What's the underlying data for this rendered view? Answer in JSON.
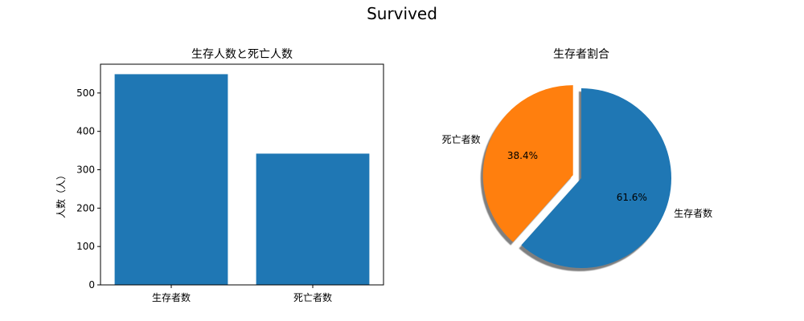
{
  "figure": {
    "title": "Survived"
  },
  "chart_data": [
    {
      "type": "bar",
      "title": "生存人数と死亡人数",
      "xlabel": "",
      "ylabel": "人数（人）",
      "categories": [
        "生存者数",
        "死亡者数"
      ],
      "values": [
        549,
        342
      ],
      "ylim": [
        0,
        575
      ],
      "yticks": [
        0,
        100,
        200,
        300,
        400,
        500
      ],
      "color": "#1f77b4",
      "grid": false
    },
    {
      "type": "pie",
      "title": "生存者割合",
      "slices": [
        {
          "label": "生存者数",
          "value": 61.6,
          "pct_label": "61.6%",
          "color": "#1f77b4",
          "explode": false
        },
        {
          "label": "死亡者数",
          "value": 38.4,
          "pct_label": "38.4%",
          "color": "#ff7f0e",
          "explode": true
        }
      ],
      "start_angle_deg": 90,
      "counterclockwise": false,
      "shadow": true
    }
  ]
}
